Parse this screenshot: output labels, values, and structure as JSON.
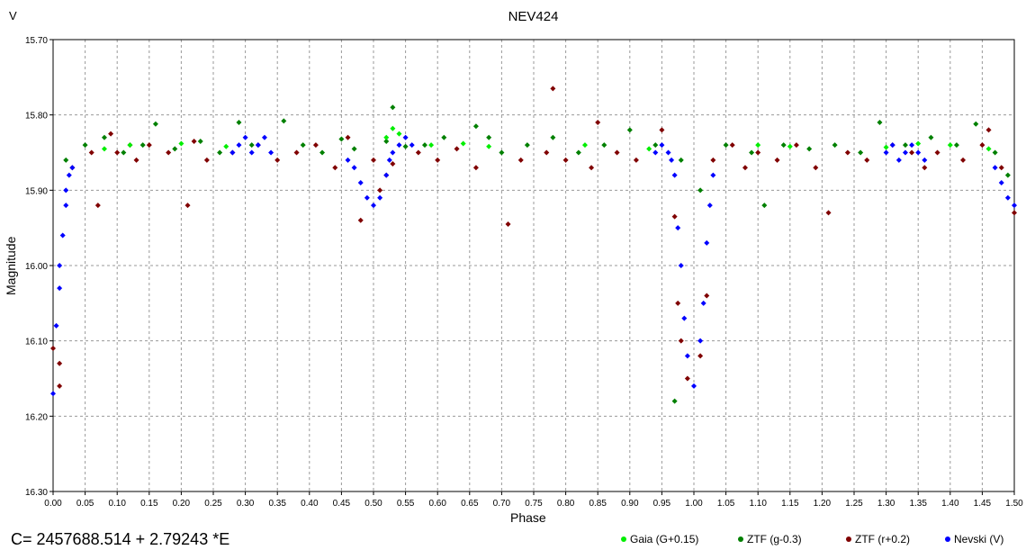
{
  "corner_label": "V",
  "ephemeris": "C= 2457688.514 + 2.79243 *E",
  "chart_data": {
    "type": "scatter",
    "title": "NEV424",
    "xlabel": "Phase",
    "ylabel": "Magnitude",
    "xlim": [
      0.0,
      1.5
    ],
    "ylim": [
      15.7,
      16.3
    ],
    "y_inverted": true,
    "x_ticks": [
      "0.00",
      "0.05",
      "0.10",
      "0.15",
      "0.20",
      "0.25",
      "0.30",
      "0.35",
      "0.40",
      "0.45",
      "0.50",
      "0.55",
      "0.60",
      "0.65",
      "0.70",
      "0.75",
      "0.80",
      "0.85",
      "0.90",
      "0.95",
      "1.00",
      "1.05",
      "1.10",
      "1.15",
      "1.20",
      "1.25",
      "1.30",
      "1.35",
      "1.40",
      "1.45",
      "1.50"
    ],
    "y_ticks": [
      "15.70",
      "15.80",
      "15.90",
      "16.00",
      "16.10",
      "16.20",
      "16.30"
    ],
    "grid": true,
    "legend_placement": "bottom-right",
    "marker": "diamond",
    "series": [
      {
        "name": "Gaia (G+0.15)",
        "color": "#00ee00",
        "points": [
          [
            0.08,
            15.845
          ],
          [
            0.12,
            15.84
          ],
          [
            0.2,
            15.838
          ],
          [
            0.27,
            15.842
          ],
          [
            0.52,
            15.83
          ],
          [
            0.53,
            15.818
          ],
          [
            0.54,
            15.825
          ],
          [
            0.59,
            15.84
          ],
          [
            0.64,
            15.838
          ],
          [
            0.68,
            15.842
          ],
          [
            0.83,
            15.84
          ],
          [
            0.93,
            15.845
          ],
          [
            1.1,
            15.84
          ],
          [
            1.15,
            15.842
          ],
          [
            1.3,
            15.843
          ],
          [
            1.35,
            15.838
          ],
          [
            1.4,
            15.84
          ],
          [
            1.46,
            15.845
          ]
        ]
      },
      {
        "name": "ZTF (g-0.3)",
        "color": "#008000",
        "points": [
          [
            0.02,
            15.86
          ],
          [
            0.05,
            15.84
          ],
          [
            0.08,
            15.83
          ],
          [
            0.11,
            15.85
          ],
          [
            0.14,
            15.84
          ],
          [
            0.16,
            15.812
          ],
          [
            0.19,
            15.845
          ],
          [
            0.23,
            15.835
          ],
          [
            0.26,
            15.85
          ],
          [
            0.29,
            15.81
          ],
          [
            0.31,
            15.84
          ],
          [
            0.36,
            15.808
          ],
          [
            0.39,
            15.84
          ],
          [
            0.42,
            15.85
          ],
          [
            0.45,
            15.832
          ],
          [
            0.47,
            15.845
          ],
          [
            0.52,
            15.835
          ],
          [
            0.53,
            15.79
          ],
          [
            0.55,
            15.842
          ],
          [
            0.58,
            15.84
          ],
          [
            0.61,
            15.83
          ],
          [
            0.66,
            15.815
          ],
          [
            0.7,
            15.85
          ],
          [
            0.74,
            15.84
          ],
          [
            0.78,
            15.83
          ],
          [
            0.82,
            15.85
          ],
          [
            0.86,
            15.84
          ],
          [
            0.9,
            15.82
          ],
          [
            0.94,
            15.84
          ],
          [
            0.98,
            15.86
          ],
          [
            1.01,
            15.9
          ],
          [
            1.05,
            15.84
          ],
          [
            1.09,
            15.85
          ],
          [
            1.11,
            15.92
          ],
          [
            1.14,
            15.84
          ],
          [
            1.18,
            15.845
          ],
          [
            1.22,
            15.84
          ],
          [
            1.26,
            15.85
          ],
          [
            1.29,
            15.81
          ],
          [
            1.33,
            15.84
          ],
          [
            1.37,
            15.83
          ],
          [
            1.41,
            15.84
          ],
          [
            1.44,
            15.812
          ],
          [
            1.47,
            15.85
          ],
          [
            1.49,
            15.88
          ],
          [
            0.68,
            15.83
          ],
          [
            0.97,
            16.18
          ]
        ]
      },
      {
        "name": "ZTF (r+0.2)",
        "color": "#800000",
        "points": [
          [
            0.0,
            16.11
          ],
          [
            0.01,
            16.13
          ],
          [
            0.01,
            16.16
          ],
          [
            0.03,
            15.87
          ],
          [
            0.06,
            15.85
          ],
          [
            0.07,
            15.92
          ],
          [
            0.09,
            15.825
          ],
          [
            0.1,
            15.85
          ],
          [
            0.12,
            15.84
          ],
          [
            0.13,
            15.86
          ],
          [
            0.15,
            15.84
          ],
          [
            0.18,
            15.85
          ],
          [
            0.21,
            15.92
          ],
          [
            0.22,
            15.835
          ],
          [
            0.24,
            15.86
          ],
          [
            0.28,
            15.85
          ],
          [
            0.32,
            15.84
          ],
          [
            0.35,
            15.86
          ],
          [
            0.38,
            15.85
          ],
          [
            0.41,
            15.84
          ],
          [
            0.44,
            15.87
          ],
          [
            0.46,
            15.83
          ],
          [
            0.48,
            15.94
          ],
          [
            0.5,
            15.86
          ],
          [
            0.51,
            15.9
          ],
          [
            0.52,
            15.88
          ],
          [
            0.53,
            15.865
          ],
          [
            0.57,
            15.85
          ],
          [
            0.6,
            15.86
          ],
          [
            0.63,
            15.845
          ],
          [
            0.66,
            15.87
          ],
          [
            0.71,
            15.945
          ],
          [
            0.73,
            15.86
          ],
          [
            0.77,
            15.85
          ],
          [
            0.78,
            15.765
          ],
          [
            0.8,
            15.86
          ],
          [
            0.84,
            15.87
          ],
          [
            0.85,
            15.81
          ],
          [
            0.88,
            15.85
          ],
          [
            0.91,
            15.86
          ],
          [
            0.95,
            15.82
          ],
          [
            0.97,
            15.935
          ],
          [
            0.975,
            16.05
          ],
          [
            0.98,
            16.1
          ],
          [
            0.99,
            16.15
          ],
          [
            1.01,
            16.12
          ],
          [
            1.02,
            16.04
          ],
          [
            1.03,
            15.86
          ],
          [
            1.06,
            15.84
          ],
          [
            1.08,
            15.87
          ],
          [
            1.1,
            15.85
          ],
          [
            1.13,
            15.86
          ],
          [
            1.16,
            15.84
          ],
          [
            1.19,
            15.87
          ],
          [
            1.21,
            15.93
          ],
          [
            1.24,
            15.85
          ],
          [
            1.27,
            15.86
          ],
          [
            1.31,
            15.84
          ],
          [
            1.34,
            15.85
          ],
          [
            1.36,
            15.87
          ],
          [
            1.38,
            15.85
          ],
          [
            1.42,
            15.86
          ],
          [
            1.45,
            15.84
          ],
          [
            1.46,
            15.82
          ],
          [
            1.48,
            15.87
          ],
          [
            1.5,
            15.93
          ]
        ]
      },
      {
        "name": "Nevski (V)",
        "color": "#0000ff",
        "points": [
          [
            0.0,
            16.17
          ],
          [
            0.005,
            16.08
          ],
          [
            0.01,
            16.03
          ],
          [
            0.01,
            16.0
          ],
          [
            0.015,
            15.96
          ],
          [
            0.02,
            15.92
          ],
          [
            0.02,
            15.9
          ],
          [
            0.025,
            15.88
          ],
          [
            0.03,
            15.87
          ],
          [
            0.28,
            15.85
          ],
          [
            0.29,
            15.84
          ],
          [
            0.3,
            15.83
          ],
          [
            0.31,
            15.85
          ],
          [
            0.32,
            15.84
          ],
          [
            0.33,
            15.83
          ],
          [
            0.34,
            15.85
          ],
          [
            0.46,
            15.86
          ],
          [
            0.47,
            15.87
          ],
          [
            0.48,
            15.89
          ],
          [
            0.49,
            15.91
          ],
          [
            0.5,
            15.92
          ],
          [
            0.51,
            15.91
          ],
          [
            0.52,
            15.88
          ],
          [
            0.525,
            15.86
          ],
          [
            0.53,
            15.85
          ],
          [
            0.54,
            15.84
          ],
          [
            0.55,
            15.83
          ],
          [
            0.56,
            15.84
          ],
          [
            0.94,
            15.85
          ],
          [
            0.95,
            15.84
          ],
          [
            0.96,
            15.85
          ],
          [
            0.965,
            15.86
          ],
          [
            0.97,
            15.88
          ],
          [
            0.975,
            15.95
          ],
          [
            0.98,
            16.0
          ],
          [
            0.985,
            16.07
          ],
          [
            0.99,
            16.12
          ],
          [
            1.0,
            16.16
          ],
          [
            1.01,
            16.1
          ],
          [
            1.015,
            16.05
          ],
          [
            1.02,
            15.97
          ],
          [
            1.025,
            15.92
          ],
          [
            1.03,
            15.88
          ],
          [
            1.3,
            15.85
          ],
          [
            1.31,
            15.84
          ],
          [
            1.32,
            15.86
          ],
          [
            1.33,
            15.85
          ],
          [
            1.34,
            15.84
          ],
          [
            1.35,
            15.85
          ],
          [
            1.36,
            15.86
          ],
          [
            1.47,
            15.87
          ],
          [
            1.48,
            15.89
          ],
          [
            1.49,
            15.91
          ],
          [
            1.5,
            15.92
          ]
        ]
      }
    ]
  }
}
